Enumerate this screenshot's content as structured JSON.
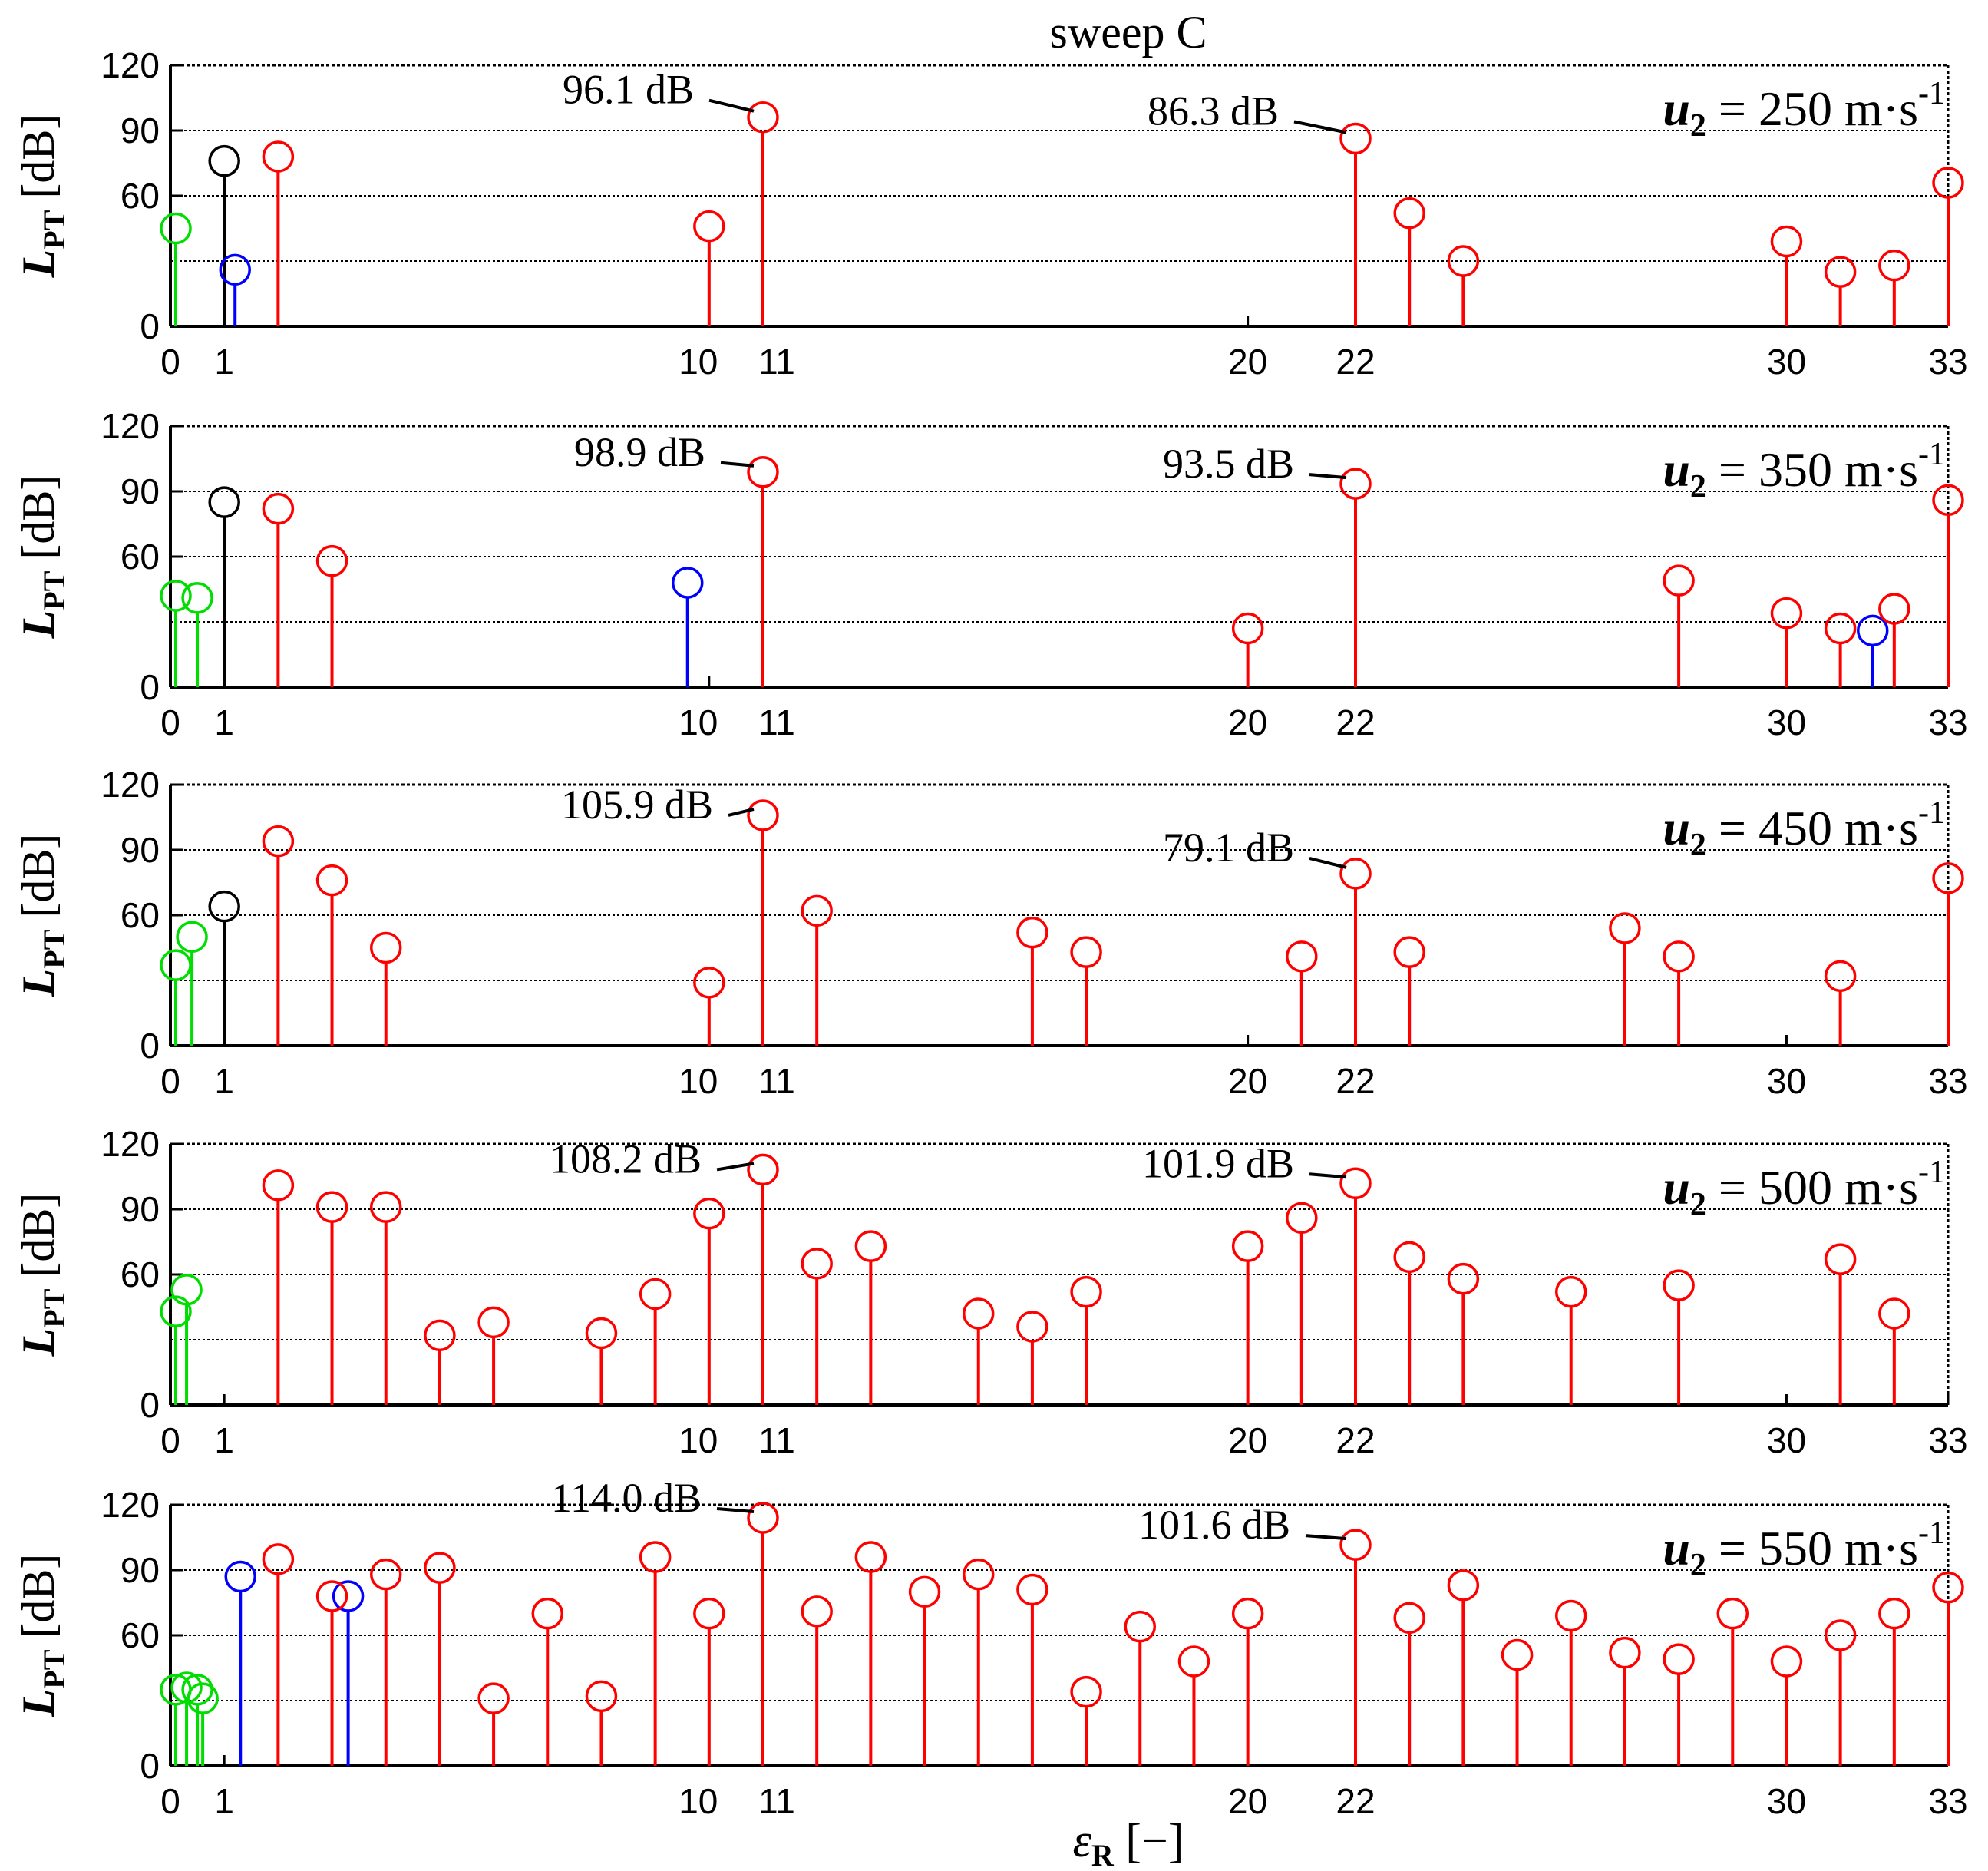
{
  "figure_title": "sweep C",
  "chart_data": [
    {
      "type": "stem",
      "ylabel": "L_PT [dB]",
      "ylim": [
        0,
        120
      ],
      "yticks": [
        0,
        60,
        90,
        120
      ],
      "xlim": [
        0,
        33
      ],
      "xticks": [
        0,
        1,
        10,
        11,
        20,
        22,
        30,
        33
      ],
      "grid": "horizontal",
      "speed_label": "u_2 = 250 m·s^-1",
      "series": [
        {
          "color": "#00dd00",
          "points": [
            [
              0.1,
              45
            ]
          ]
        },
        {
          "color": "#000000",
          "points": [
            [
              1,
              76
            ]
          ]
        },
        {
          "color": "#0000ff",
          "points": [
            [
              1.2,
              26
            ]
          ]
        },
        {
          "color": "#ff0000",
          "points": [
            [
              2,
              78
            ],
            [
              10,
              46
            ],
            [
              11,
              96.1
            ],
            [
              22,
              86.3
            ],
            [
              23,
              52
            ],
            [
              24,
              30
            ],
            [
              30,
              39
            ],
            [
              31,
              25
            ],
            [
              32,
              28
            ],
            [
              33,
              66
            ]
          ]
        }
      ],
      "annotations": [
        {
          "text": "96.1 dB",
          "x": 11,
          "y": 96.1
        },
        {
          "text": "86.3 dB",
          "x": 22,
          "y": 86.3
        }
      ]
    },
    {
      "type": "stem",
      "ylabel": "L_PT [dB]",
      "ylim": [
        0,
        120
      ],
      "yticks": [
        0,
        60,
        90,
        120
      ],
      "xlim": [
        0,
        33
      ],
      "xticks": [
        0,
        1,
        10,
        11,
        20,
        22,
        30,
        33
      ],
      "grid": "horizontal",
      "speed_label": "u_2 = 350 m·s^-1",
      "series": [
        {
          "color": "#00dd00",
          "points": [
            [
              0.1,
              42
            ],
            [
              0.5,
              41
            ]
          ]
        },
        {
          "color": "#000000",
          "points": [
            [
              1,
              85
            ]
          ]
        },
        {
          "color": "#0000ff",
          "points": [
            [
              9.6,
              48
            ],
            [
              31.6,
              26
            ]
          ]
        },
        {
          "color": "#ff0000",
          "points": [
            [
              2,
              82
            ],
            [
              3,
              58
            ],
            [
              11,
              98.9
            ],
            [
              20,
              27
            ],
            [
              22,
              93.5
            ],
            [
              28,
              49
            ],
            [
              30,
              34
            ],
            [
              31,
              27
            ],
            [
              32,
              36
            ],
            [
              33,
              86
            ]
          ]
        }
      ],
      "annotations": [
        {
          "text": "98.9 dB",
          "x": 11,
          "y": 98.9
        },
        {
          "text": "93.5 dB",
          "x": 22,
          "y": 93.5
        }
      ]
    },
    {
      "type": "stem",
      "ylabel": "L_PT [dB]",
      "ylim": [
        0,
        120
      ],
      "yticks": [
        0,
        60,
        90,
        120
      ],
      "xlim": [
        0,
        33
      ],
      "xticks": [
        0,
        1,
        10,
        11,
        20,
        22,
        30,
        33
      ],
      "grid": "horizontal",
      "speed_label": "u_2 = 450 m·s^-1",
      "series": [
        {
          "color": "#00dd00",
          "points": [
            [
              0.1,
              37
            ],
            [
              0.4,
              50
            ]
          ]
        },
        {
          "color": "#000000",
          "points": [
            [
              1,
              64
            ]
          ]
        },
        {
          "color": "#ff0000",
          "points": [
            [
              2,
              94
            ],
            [
              3,
              76
            ],
            [
              4,
              45
            ],
            [
              10,
              29
            ],
            [
              11,
              105.9
            ],
            [
              12,
              62
            ],
            [
              16,
              52
            ],
            [
              17,
              43
            ],
            [
              21,
              41
            ],
            [
              22,
              79.1
            ],
            [
              23,
              43
            ],
            [
              27,
              54
            ],
            [
              28,
              41
            ],
            [
              31,
              32
            ],
            [
              33,
              77
            ]
          ]
        }
      ],
      "annotations": [
        {
          "text": "105.9 dB",
          "x": 11,
          "y": 105.9
        },
        {
          "text": "79.1 dB",
          "x": 22,
          "y": 79.1
        }
      ]
    },
    {
      "type": "stem",
      "ylabel": "L_PT [dB]",
      "ylim": [
        0,
        120
      ],
      "yticks": [
        0,
        60,
        90,
        120
      ],
      "xlim": [
        0,
        33
      ],
      "xticks": [
        0,
        1,
        10,
        11,
        20,
        22,
        30,
        33
      ],
      "grid": "horizontal",
      "speed_label": "u_2 = 500 m·s^-1",
      "series": [
        {
          "color": "#00dd00",
          "points": [
            [
              0.1,
              43
            ],
            [
              0.3,
              53
            ]
          ]
        },
        {
          "color": "#ff0000",
          "points": [
            [
              2,
              101
            ],
            [
              3,
              91
            ],
            [
              4,
              91
            ],
            [
              5,
              32
            ],
            [
              6,
              38
            ],
            [
              8,
              33
            ],
            [
              9,
              51
            ],
            [
              10,
              88
            ],
            [
              11,
              108.2
            ],
            [
              12,
              65
            ],
            [
              13,
              73
            ],
            [
              15,
              42
            ],
            [
              16,
              36
            ],
            [
              17,
              52
            ],
            [
              20,
              73
            ],
            [
              21,
              86
            ],
            [
              22,
              101.9
            ],
            [
              23,
              68
            ],
            [
              24,
              58
            ],
            [
              26,
              52
            ],
            [
              28,
              55
            ],
            [
              31,
              67
            ],
            [
              32,
              42
            ]
          ]
        }
      ],
      "annotations": [
        {
          "text": "108.2 dB",
          "x": 11,
          "y": 108.2
        },
        {
          "text": "101.9 dB",
          "x": 22,
          "y": 101.9
        }
      ]
    },
    {
      "type": "stem",
      "ylabel": "L_PT [dB]",
      "ylim": [
        0,
        120
      ],
      "yticks": [
        0,
        60,
        90,
        120
      ],
      "xlim": [
        0,
        33
      ],
      "xticks": [
        0,
        1,
        10,
        11,
        20,
        22,
        30,
        33
      ],
      "grid": "horizontal",
      "speed_label": "u_2 = 550 m·s^-1",
      "series": [
        {
          "color": "#00dd00",
          "points": [
            [
              0.1,
              35
            ],
            [
              0.3,
              36
            ],
            [
              0.5,
              35
            ],
            [
              0.6,
              31
            ]
          ]
        },
        {
          "color": "#0000ff",
          "points": [
            [
              1.3,
              87
            ],
            [
              3.3,
              78
            ]
          ]
        },
        {
          "color": "#ff0000",
          "points": [
            [
              2,
              95
            ],
            [
              3,
              78
            ],
            [
              4,
              88
            ],
            [
              5,
              91
            ],
            [
              6,
              31
            ],
            [
              7,
              70
            ],
            [
              8,
              32
            ],
            [
              9,
              96
            ],
            [
              10,
              70
            ],
            [
              11,
              114.0
            ],
            [
              12,
              71
            ],
            [
              13,
              96
            ],
            [
              14,
              80
            ],
            [
              15,
              88
            ],
            [
              16,
              81
            ],
            [
              17,
              34
            ],
            [
              18,
              64
            ],
            [
              19,
              48
            ],
            [
              20,
              70
            ],
            [
              22,
              101.6
            ],
            [
              23,
              68
            ],
            [
              24,
              83
            ],
            [
              25,
              51
            ],
            [
              26,
              69
            ],
            [
              27,
              52
            ],
            [
              28,
              49
            ],
            [
              29,
              70
            ],
            [
              30,
              48
            ],
            [
              31,
              60
            ],
            [
              32,
              70
            ],
            [
              33,
              82
            ]
          ]
        }
      ],
      "annotations": [
        {
          "text": "114.0 dB",
          "x": 11,
          "y": 114.0
        },
        {
          "text": "101.6 dB",
          "x": 22,
          "y": 101.6
        }
      ]
    }
  ],
  "xlabel": "ε_R [−]"
}
